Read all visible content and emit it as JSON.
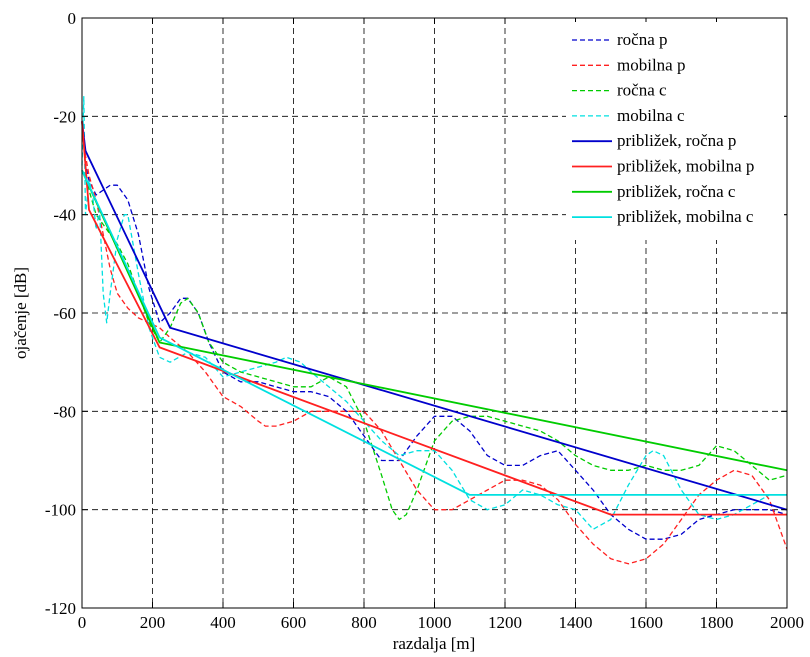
{
  "chart_data": {
    "type": "line",
    "xlabel": "razdalja [m]",
    "ylabel": "ojačenje [dB]",
    "xlim": [
      0,
      2000
    ],
    "ylim": [
      -120,
      0
    ],
    "xticks": [
      "0",
      "200",
      "400",
      "600",
      "800",
      "1000",
      "1200",
      "1400",
      "1600",
      "1800",
      "2000"
    ],
    "yticks": [
      "0",
      "-20",
      "-40",
      "-60",
      "-80",
      "-100",
      "-120"
    ],
    "grid": true,
    "legend_position": "top-right",
    "series": [
      {
        "name": "ročna p",
        "color": "#0000cc",
        "dash": "dashed",
        "x": [
          0,
          10,
          20,
          40,
          60,
          80,
          100,
          130,
          160,
          190,
          220,
          250,
          280,
          300,
          330,
          360,
          400,
          450,
          500,
          550,
          600,
          650,
          700,
          750,
          800,
          850,
          900,
          950,
          1000,
          1050,
          1100,
          1150,
          1200,
          1250,
          1300,
          1350,
          1400,
          1450,
          1500,
          1550,
          1600,
          1650,
          1700,
          1750,
          1800,
          1850,
          1900,
          1950,
          2000
        ],
        "y": [
          -21,
          -30,
          -33,
          -36,
          -35,
          -34,
          -34,
          -37,
          -44,
          -55,
          -62,
          -60,
          -57,
          -57,
          -60,
          -66,
          -72,
          -74,
          -74,
          -75,
          -76,
          -76,
          -77,
          -80,
          -85,
          -90,
          -90,
          -85,
          -81,
          -81,
          -84,
          -89,
          -91,
          -91,
          -89,
          -88,
          -92,
          -96,
          -101,
          -104,
          -106,
          -106,
          -105,
          -102,
          -101,
          -100,
          -100,
          -100,
          -101
        ]
      },
      {
        "name": "mobilna p",
        "color": "#ff2020",
        "dash": "dashed",
        "x": [
          0,
          10,
          20,
          40,
          60,
          80,
          100,
          130,
          160,
          190,
          220,
          250,
          300,
          350,
          400,
          450,
          500,
          520,
          550,
          600,
          650,
          700,
          750,
          800,
          850,
          900,
          950,
          1000,
          1050,
          1100,
          1150,
          1200,
          1250,
          1300,
          1350,
          1400,
          1450,
          1500,
          1550,
          1600,
          1650,
          1700,
          1750,
          1800,
          1850,
          1900,
          1950,
          2000
        ],
        "y": [
          -21,
          -28,
          -32,
          -37,
          -44,
          -51,
          -56,
          -59,
          -61,
          -62,
          -63,
          -65,
          -68,
          -72,
          -77,
          -79,
          -82,
          -83,
          -83,
          -82,
          -80,
          -80,
          -80,
          -80,
          -84,
          -90,
          -96,
          -100,
          -100,
          -98,
          -96,
          -94,
          -94,
          -95,
          -98,
          -103,
          -107,
          -110,
          -111,
          -110,
          -107,
          -102,
          -97,
          -94,
          -92,
          -93,
          -98,
          -108
        ]
      },
      {
        "name": "ročna c",
        "color": "#00cc00",
        "dash": "dashed",
        "x": [
          0,
          10,
          20,
          40,
          60,
          80,
          100,
          130,
          160,
          190,
          220,
          250,
          280,
          300,
          330,
          360,
          400,
          450,
          500,
          550,
          600,
          650,
          700,
          750,
          800,
          850,
          880,
          900,
          920,
          950,
          1000,
          1050,
          1100,
          1150,
          1200,
          1250,
          1300,
          1350,
          1400,
          1450,
          1500,
          1550,
          1600,
          1650,
          1700,
          1750,
          1800,
          1850,
          1900,
          1950,
          2000
        ],
        "y": [
          -31,
          -32,
          -35,
          -40,
          -42,
          -44,
          -46,
          -50,
          -56,
          -62,
          -66,
          -63,
          -58,
          -57,
          -60,
          -66,
          -70,
          -72,
          -73,
          -74,
          -75,
          -75,
          -73,
          -75,
          -82,
          -93,
          -100,
          -102,
          -101,
          -96,
          -86,
          -82,
          -81,
          -81,
          -82,
          -83,
          -84,
          -86,
          -89,
          -91,
          -92,
          -92,
          -91,
          -92,
          -92,
          -91,
          -87,
          -88,
          -91,
          -94,
          -93
        ]
      },
      {
        "name": "mobilna c",
        "color": "#00e0e0",
        "dash": "dashed",
        "x": [
          0,
          5,
          10,
          20,
          30,
          40,
          50,
          60,
          70,
          80,
          100,
          120,
          130,
          160,
          190,
          220,
          250,
          300,
          350,
          400,
          450,
          500,
          550,
          580,
          620,
          650,
          700,
          750,
          800,
          850,
          900,
          950,
          1000,
          1050,
          1100,
          1150,
          1200,
          1250,
          1300,
          1350,
          1400,
          1450,
          1500,
          1550,
          1600,
          1620,
          1650,
          1700,
          1750,
          1800,
          1850,
          1900,
          1950,
          2000
        ],
        "y": [
          -30,
          -16,
          -40,
          -33,
          -36,
          -43,
          -39,
          -56,
          -62,
          -56,
          -45,
          -40,
          -40,
          -52,
          -63,
          -69,
          -70,
          -68,
          -69,
          -73,
          -72,
          -71,
          -70,
          -69,
          -70,
          -72,
          -75,
          -78,
          -82,
          -86,
          -89,
          -88,
          -88,
          -92,
          -98,
          -100,
          -99,
          -96,
          -97,
          -99,
          -100,
          -104,
          -102,
          -95,
          -89,
          -88,
          -89,
          -96,
          -101,
          -102,
          -101,
          -99,
          -97,
          -97
        ]
      },
      {
        "name": "približek, ročna p",
        "color": "#0000cc",
        "dash": "solid",
        "x": [
          0,
          10,
          250,
          2000
        ],
        "y": [
          -21,
          -27,
          -63,
          -100
        ]
      },
      {
        "name": "približek, mobilna p",
        "color": "#ff2020",
        "dash": "solid",
        "x": [
          0,
          20,
          220,
          1500,
          2000
        ],
        "y": [
          -21,
          -39,
          -67,
          -101,
          -101
        ]
      },
      {
        "name": "približek, ročna c",
        "color": "#00cc00",
        "dash": "solid",
        "x": [
          0,
          220,
          2000
        ],
        "y": [
          -31,
          -66,
          -92
        ]
      },
      {
        "name": "približek, mobilna c",
        "color": "#00e0e0",
        "dash": "solid",
        "x": [
          0,
          220,
          1100,
          2000
        ],
        "y": [
          -31,
          -65,
          -97,
          -97
        ]
      }
    ]
  }
}
